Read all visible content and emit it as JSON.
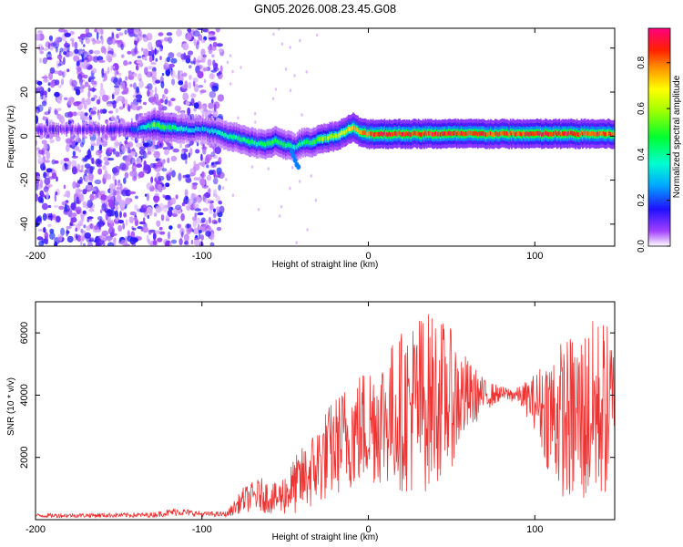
{
  "title": "GN05.2026.008.23.45.G08",
  "chart_data": [
    {
      "type": "heatmap",
      "title": "GN05.2026.008.23.45.G08",
      "xlabel": "Height of straight line (km)",
      "ylabel": "Frequency (Hz)",
      "xlim": [
        -200,
        148
      ],
      "ylim": [
        -50,
        49
      ],
      "x_ticks": [
        -200,
        -100,
        0,
        100
      ],
      "x_tick_labels": [
        "-200",
        "-100",
        "0",
        "100"
      ],
      "y_ticks": [
        -40,
        -20,
        0,
        20,
        40
      ],
      "y_tick_labels": [
        "-40",
        "-20",
        "0",
        "20",
        "40"
      ],
      "ridge": {
        "description": "frequency of peak spectral amplitude vs height",
        "x": [
          -200,
          -180,
          -160,
          -140,
          -130,
          -120,
          -110,
          -100,
          -92,
          -85,
          -78,
          -70,
          -62,
          -56,
          -50,
          -44,
          -40,
          -35,
          -28,
          -20,
          -14,
          -10,
          -6,
          -2,
          0,
          10,
          20,
          40,
          60,
          80,
          100,
          120,
          148
        ],
        "y": [
          3,
          3,
          3,
          3,
          5,
          4,
          3,
          3,
          2,
          0,
          -1,
          -3,
          -4,
          -2,
          -4,
          -5,
          -3,
          -3,
          -1,
          0,
          2,
          4,
          2,
          1,
          1,
          1,
          1,
          1,
          1,
          1,
          1,
          1,
          1
        ],
        "amplitude": [
          0.1,
          0.1,
          0.1,
          0.2,
          0.55,
          0.5,
          0.35,
          0.3,
          0.35,
          0.4,
          0.45,
          0.45,
          0.45,
          0.5,
          0.45,
          0.4,
          0.45,
          0.5,
          0.6,
          0.65,
          0.7,
          0.75,
          0.8,
          0.8,
          0.85,
          0.9,
          0.9,
          0.9,
          0.9,
          0.85,
          0.9,
          0.9,
          0.85
        ]
      },
      "colorbar": {
        "label": "Normalized spectral amplitude",
        "range": [
          0,
          0.95
        ],
        "ticks": [
          0,
          0.2,
          0.4,
          0.6,
          0.8
        ],
        "tick_labels": [
          "0.0",
          "0.2",
          "0.4",
          "0.6",
          "0.8"
        ]
      }
    },
    {
      "type": "line",
      "xlabel": "Height of straight line (km)",
      "ylabel": "SNR (10 * v/v)",
      "xlim": [
        -200,
        148
      ],
      "ylim": [
        0,
        7000
      ],
      "x_ticks": [
        -200,
        -100,
        0,
        100
      ],
      "x_tick_labels": [
        "-200",
        "-100",
        "0",
        "100"
      ],
      "y_ticks": [
        2000,
        4000,
        6000
      ],
      "y_tick_labels": [
        "2000",
        "4000",
        "6000"
      ],
      "color": "#ee3333",
      "envelope": {
        "description": "approximate SNR level (center, and +/- spread) vs height",
        "x": [
          -200,
          -130,
          -115,
          -100,
          -85,
          -75,
          -65,
          -55,
          -45,
          -35,
          -25,
          -15,
          -5,
          0,
          10,
          20,
          30,
          40,
          50,
          60,
          70,
          80,
          90,
          100,
          110,
          120,
          130,
          140,
          148
        ],
        "center": [
          130,
          150,
          260,
          180,
          170,
          650,
          800,
          650,
          1050,
          1500,
          2100,
          2600,
          2900,
          3100,
          3300,
          3500,
          3700,
          3900,
          3900,
          3950,
          4000,
          4050,
          4000,
          3800,
          3400,
          3200,
          3300,
          3600,
          3400
        ],
        "spread": [
          70,
          80,
          130,
          80,
          90,
          400,
          550,
          500,
          900,
          1200,
          1500,
          1700,
          1900,
          2000,
          2200,
          2600,
          3000,
          2800,
          2200,
          1200,
          500,
          220,
          250,
          900,
          2200,
          2700,
          3000,
          3000,
          2600
        ]
      }
    }
  ]
}
